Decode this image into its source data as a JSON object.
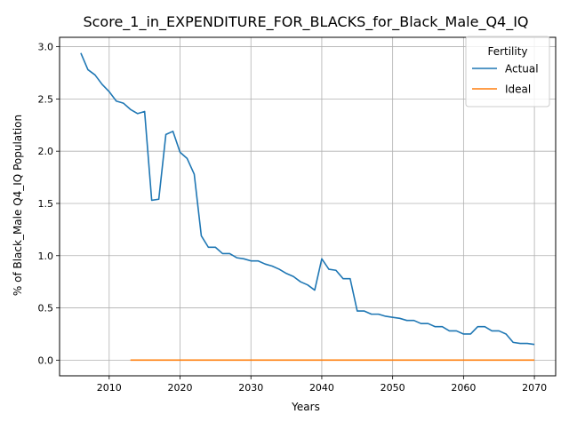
{
  "chart_data": {
    "type": "line",
    "title": "Score_1_in_EXPENDITURE_FOR_BLACKS_for_Black_Male_Q4_IQ",
    "xlabel": "Years",
    "ylabel": "% of Black_Male Q4_IQ Population",
    "xlim": [
      2003,
      2073
    ],
    "ylim": [
      -0.15,
      3.09
    ],
    "xticks": [
      2010,
      2020,
      2030,
      2040,
      2050,
      2060,
      2070
    ],
    "yticks": [
      0.0,
      0.5,
      1.0,
      1.5,
      2.0,
      2.5,
      3.0
    ],
    "xtick_labels": [
      "2010",
      "2020",
      "2030",
      "2040",
      "2050",
      "2060",
      "2070"
    ],
    "ytick_labels": [
      "0.0",
      "0.5",
      "1.0",
      "1.5",
      "2.0",
      "2.5",
      "3.0"
    ],
    "grid": true,
    "legend": {
      "title": "Fertility",
      "placement": "top-right"
    },
    "series": [
      {
        "name": "Actual",
        "color": "#1f77b4",
        "x": [
          2006,
          2007,
          2008,
          2009,
          2010,
          2011,
          2012,
          2013,
          2014,
          2015,
          2016,
          2017,
          2018,
          2019,
          2020,
          2021,
          2022,
          2023,
          2024,
          2025,
          2026,
          2027,
          2028,
          2029,
          2030,
          2031,
          2032,
          2033,
          2034,
          2035,
          2036,
          2037,
          2038,
          2039,
          2040,
          2041,
          2042,
          2043,
          2044,
          2045,
          2046,
          2047,
          2048,
          2049,
          2050,
          2051,
          2052,
          2053,
          2054,
          2055,
          2056,
          2057,
          2058,
          2059,
          2060,
          2061,
          2062,
          2063,
          2064,
          2065,
          2066,
          2067,
          2068,
          2069,
          2070
        ],
        "y": [
          2.94,
          2.78,
          2.73,
          2.64,
          2.57,
          2.48,
          2.46,
          2.4,
          2.36,
          2.38,
          1.53,
          1.54,
          2.16,
          2.19,
          1.99,
          1.93,
          1.78,
          1.19,
          1.08,
          1.08,
          1.02,
          1.02,
          0.98,
          0.97,
          0.95,
          0.95,
          0.92,
          0.9,
          0.87,
          0.83,
          0.8,
          0.75,
          0.72,
          0.67,
          0.97,
          0.87,
          0.86,
          0.78,
          0.78,
          0.47,
          0.47,
          0.44,
          0.44,
          0.42,
          0.41,
          0.4,
          0.38,
          0.38,
          0.35,
          0.35,
          0.32,
          0.32,
          0.28,
          0.28,
          0.25,
          0.25,
          0.32,
          0.32,
          0.28,
          0.28,
          0.25,
          0.17,
          0.16,
          0.16,
          0.15
        ]
      },
      {
        "name": "Ideal",
        "color": "#ff7f0e",
        "x": [
          2013,
          2070
        ],
        "y": [
          0.0,
          0.0
        ]
      }
    ]
  }
}
